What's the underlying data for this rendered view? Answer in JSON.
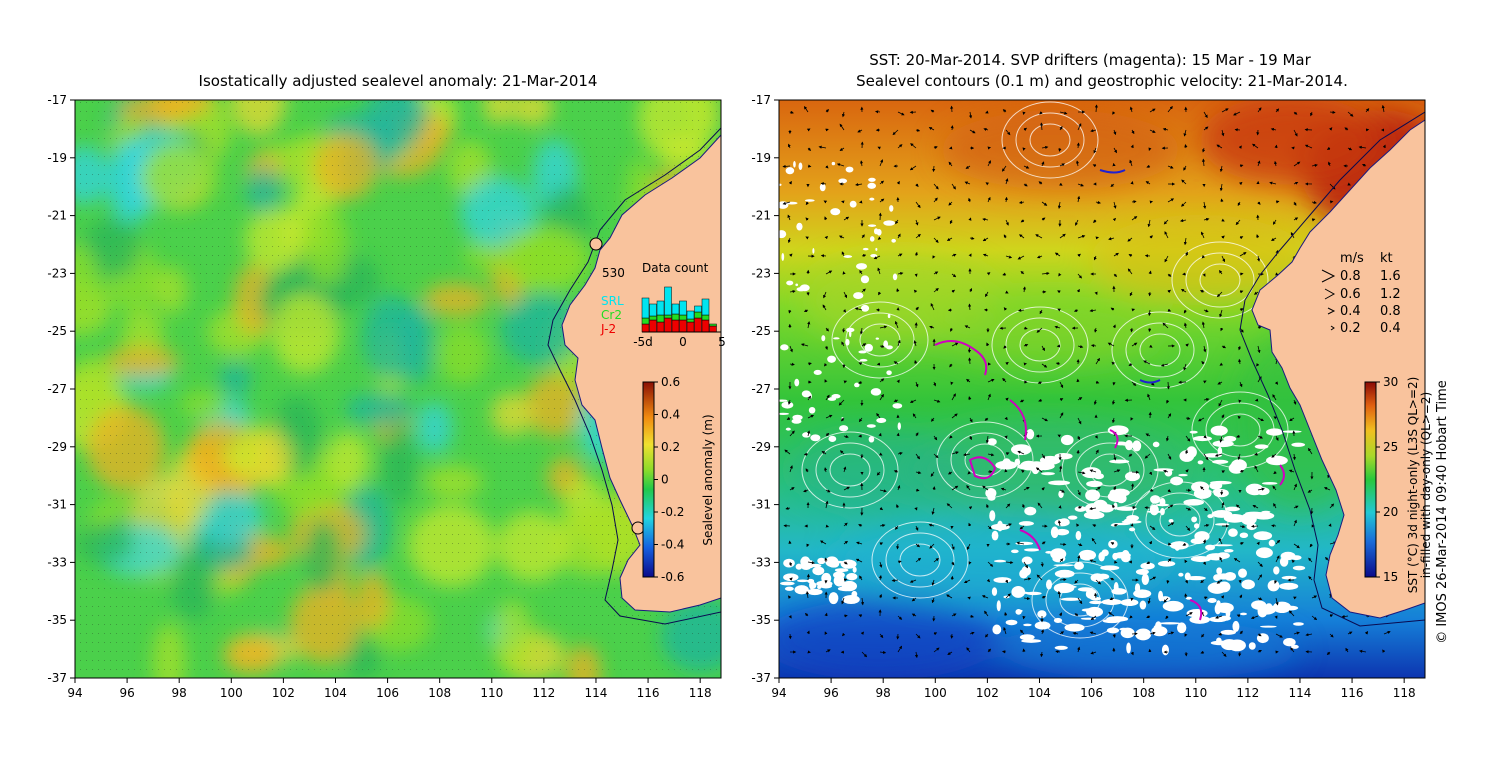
{
  "left_panel": {
    "title": "Isostatically adjusted sealevel anomaly: 21-Mar-2014",
    "lat_ticks": [
      "-17",
      "-19",
      "-21",
      "-23",
      "-25",
      "-27",
      "-29",
      "-31",
      "-33",
      "-35",
      "-37"
    ],
    "lon_ticks": [
      "94",
      "96",
      "98",
      "100",
      "102",
      "104",
      "106",
      "108",
      "110",
      "112",
      "114",
      "116",
      "118"
    ],
    "data_count": {
      "total": "530",
      "title": "Data count",
      "series_labels": {
        "srl": "SRL",
        "cr2": "Cr2",
        "j2": "J-2"
      },
      "axis_ticks": [
        "-5d",
        "0",
        "5"
      ],
      "colors": {
        "srl": "#00e5f0",
        "cr2": "#22dd22",
        "j2": "#ee0000"
      }
    },
    "colorbar": {
      "label": "Sealevel anomaly (m)",
      "ticks": [
        "0.6",
        "0.4",
        "0.2",
        "0",
        "-0.2",
        "-0.4",
        "-0.6"
      ]
    }
  },
  "right_panel": {
    "title_line1": "SST: 20-Mar-2014. SVP drifters (magenta): 15 Mar - 19 Mar",
    "title_line2": "Sealevel contours (0.1 m) and geostrophic velocity: 21-Mar-2014.",
    "lat_ticks": [
      "-17",
      "-19",
      "-21",
      "-23",
      "-25",
      "-27",
      "-29",
      "-31",
      "-33",
      "-35",
      "-37"
    ],
    "lon_ticks": [
      "94",
      "96",
      "98",
      "100",
      "102",
      "104",
      "106",
      "108",
      "110",
      "112",
      "114",
      "116",
      "118"
    ],
    "velocity_legend": {
      "header_ms": "m/s",
      "header_kt": "kt",
      "rows": [
        {
          "ms": "0.8",
          "kt": "1.6"
        },
        {
          "ms": "0.6",
          "kt": "1.2"
        },
        {
          "ms": "0.4",
          "kt": "0.8"
        },
        {
          "ms": "0.2",
          "kt": "0.4"
        }
      ]
    },
    "colorbar": {
      "ticks": [
        "30",
        "25",
        "20",
        "15"
      ],
      "label_line1": "SST (°C) 3d night-only (L3S QL>=2)",
      "label_line2": "in-filled with day-only (QL>=2)"
    }
  },
  "credit": "© IMOS 26-Mar-2014 09:40 Hobart Time",
  "colors": {
    "land": "#f9c39d",
    "coast": "#000080"
  }
}
